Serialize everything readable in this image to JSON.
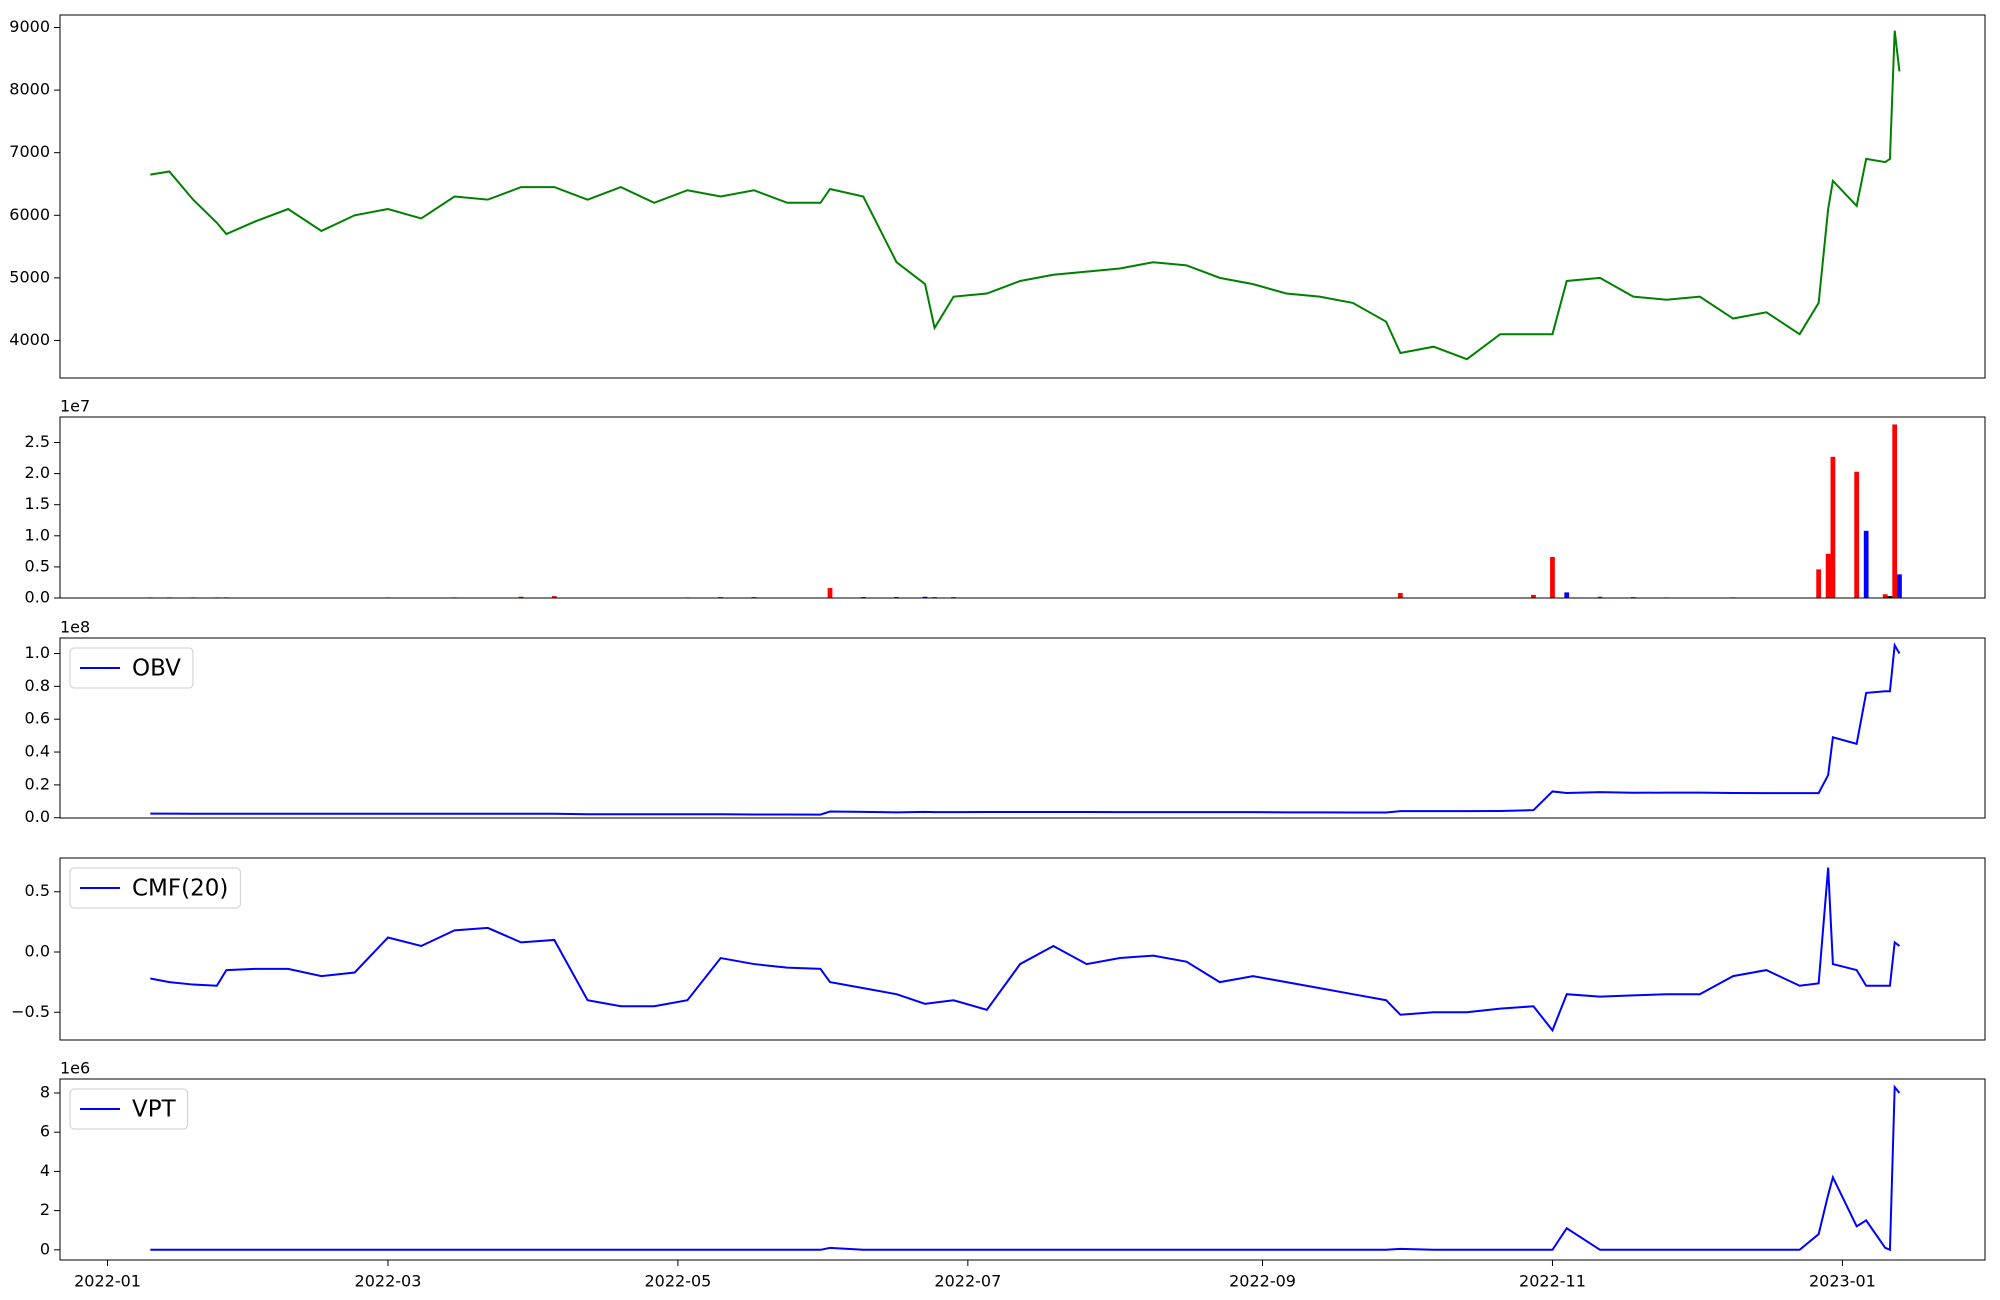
{
  "chart_data": [
    {
      "type": "line",
      "color": "green",
      "x": [
        "2022-01-10",
        "2022-01-14",
        "2022-01-19",
        "2022-01-24",
        "2022-01-26",
        "2022-02-01",
        "2022-02-08",
        "2022-02-15",
        "2022-02-22",
        "2022-03-01",
        "2022-03-08",
        "2022-03-15",
        "2022-03-22",
        "2022-03-29",
        "2022-04-05",
        "2022-04-12",
        "2022-04-19",
        "2022-04-26",
        "2022-05-03",
        "2022-05-10",
        "2022-05-17",
        "2022-05-24",
        "2022-05-31",
        "2022-06-02",
        "2022-06-09",
        "2022-06-16",
        "2022-06-22",
        "2022-06-24",
        "2022-06-28",
        "2022-07-05",
        "2022-07-12",
        "2022-07-19",
        "2022-07-26",
        "2022-08-02",
        "2022-08-09",
        "2022-08-16",
        "2022-08-23",
        "2022-08-30",
        "2022-09-06",
        "2022-09-13",
        "2022-09-20",
        "2022-09-27",
        "2022-09-30",
        "2022-10-07",
        "2022-10-14",
        "2022-10-21",
        "2022-10-28",
        "2022-11-01",
        "2022-11-04",
        "2022-11-11",
        "2022-11-18",
        "2022-11-25",
        "2022-12-02",
        "2022-12-09",
        "2022-12-16",
        "2022-12-23",
        "2022-12-27",
        "2022-12-29",
        "2022-12-30",
        "2023-01-04",
        "2023-01-06",
        "2023-01-10",
        "2023-01-11",
        "2023-01-12",
        "2023-01-13"
      ],
      "values": [
        6650,
        6700,
        6250,
        5880,
        5700,
        5900,
        6100,
        5750,
        6000,
        6100,
        5950,
        6300,
        6250,
        6450,
        6450,
        6250,
        6450,
        6200,
        6400,
        6300,
        6400,
        6200,
        6200,
        6420,
        6300,
        5250,
        4900,
        4200,
        4700,
        4750,
        4950,
        5050,
        5100,
        5150,
        5250,
        5200,
        5000,
        4900,
        4750,
        4700,
        4600,
        4300,
        3800,
        3900,
        3700,
        4100,
        4100,
        4100,
        4950,
        5000,
        4700,
        4650,
        4700,
        4350,
        4450,
        4100,
        4600,
        6100,
        6550,
        6150,
        6900,
        6850,
        6900,
        8950,
        8300
      ],
      "xlim": [
        "2021-12-22",
        "2023-01-31"
      ],
      "ylim": [
        3400,
        9200
      ],
      "yticks": [
        4000,
        5000,
        6000,
        7000,
        8000,
        9000
      ]
    },
    {
      "type": "bar",
      "offset_label": "1e7",
      "x": [
        "2022-01-10",
        "2022-01-14",
        "2022-01-19",
        "2022-01-24",
        "2022-01-26",
        "2022-02-01",
        "2022-02-08",
        "2022-02-15",
        "2022-02-22",
        "2022-03-01",
        "2022-03-08",
        "2022-03-15",
        "2022-03-22",
        "2022-03-29",
        "2022-04-05",
        "2022-04-12",
        "2022-04-19",
        "2022-04-26",
        "2022-05-03",
        "2022-05-10",
        "2022-05-17",
        "2022-05-24",
        "2022-05-31",
        "2022-06-02",
        "2022-06-09",
        "2022-06-16",
        "2022-06-22",
        "2022-06-24",
        "2022-06-28",
        "2022-07-05",
        "2022-07-12",
        "2022-07-19",
        "2022-07-26",
        "2022-08-02",
        "2022-08-09",
        "2022-08-16",
        "2022-08-23",
        "2022-08-30",
        "2022-09-06",
        "2022-09-13",
        "2022-09-20",
        "2022-09-27",
        "2022-09-30",
        "2022-10-07",
        "2022-10-14",
        "2022-10-21",
        "2022-10-28",
        "2022-11-01",
        "2022-11-04",
        "2022-11-11",
        "2022-11-18",
        "2022-11-25",
        "2022-12-02",
        "2022-12-09",
        "2022-12-16",
        "2022-12-23",
        "2022-12-27",
        "2022-12-29",
        "2022-12-30",
        "2023-01-04",
        "2023-01-06",
        "2023-01-10",
        "2023-01-11",
        "2023-01-12",
        "2023-01-13"
      ],
      "values": [
        100000,
        100000,
        100000,
        100000,
        100000,
        50000,
        50000,
        50000,
        50000,
        100000,
        50000,
        100000,
        50000,
        200000,
        300000,
        50000,
        50000,
        50000,
        100000,
        150000,
        150000,
        50000,
        50000,
        1600000,
        150000,
        150000,
        200000,
        150000,
        150000,
        50000,
        50000,
        50000,
        50000,
        50000,
        50000,
        50000,
        50000,
        50000,
        50000,
        50000,
        50000,
        50000,
        800000,
        50000,
        50000,
        50000,
        500000,
        6600000,
        900000,
        200000,
        150000,
        100000,
        50000,
        100000,
        50000,
        50000,
        4600000,
        7100000,
        22700000,
        20300000,
        10800000,
        600000,
        300000,
        27900000,
        3800000
      ],
      "colors": [
        "blue",
        "blue",
        "blue",
        "blue",
        "blue",
        "blue",
        "blue",
        "blue",
        "blue",
        "red",
        "blue",
        "red",
        "blue",
        "red",
        "red",
        "blue",
        "blue",
        "blue",
        "red",
        "red",
        "red",
        "blue",
        "blue",
        "red",
        "blue",
        "blue",
        "blue",
        "red",
        "red",
        "blue",
        "blue",
        "blue",
        "blue",
        "blue",
        "blue",
        "blue",
        "blue",
        "blue",
        "blue",
        "blue",
        "blue",
        "blue",
        "red",
        "blue",
        "blue",
        "blue",
        "red",
        "red",
        "blue",
        "red",
        "red",
        "red",
        "blue",
        "blue",
        "blue",
        "blue",
        "red",
        "red",
        "red",
        "red",
        "blue",
        "red",
        "black",
        "red",
        "blue"
      ],
      "xlim": [
        "2021-12-22",
        "2023-01-31"
      ],
      "ylim": [
        0,
        29100000
      ],
      "yticks": [
        {
          "value": 0,
          "label": "0.0"
        },
        {
          "value": 5000000,
          "label": "0.5"
        },
        {
          "value": 10000000,
          "label": "1.0"
        },
        {
          "value": 15000000,
          "label": "1.5"
        },
        {
          "value": 20000000,
          "label": "2.0"
        },
        {
          "value": 25000000,
          "label": "2.5"
        }
      ]
    },
    {
      "type": "line",
      "offset_label": "1e8",
      "legend": "upper left",
      "x": [
        "2022-01-10",
        "2022-01-14",
        "2022-01-19",
        "2022-01-24",
        "2022-01-26",
        "2022-02-01",
        "2022-02-08",
        "2022-02-15",
        "2022-02-22",
        "2022-03-01",
        "2022-03-08",
        "2022-03-15",
        "2022-03-22",
        "2022-03-29",
        "2022-04-05",
        "2022-04-12",
        "2022-04-19",
        "2022-04-26",
        "2022-05-03",
        "2022-05-10",
        "2022-05-17",
        "2022-05-24",
        "2022-05-31",
        "2022-06-02",
        "2022-06-09",
        "2022-06-16",
        "2022-06-22",
        "2022-06-24",
        "2022-06-28",
        "2022-07-05",
        "2022-07-12",
        "2022-07-19",
        "2022-07-26",
        "2022-08-02",
        "2022-08-09",
        "2022-08-16",
        "2022-08-23",
        "2022-08-30",
        "2022-09-06",
        "2022-09-13",
        "2022-09-20",
        "2022-09-27",
        "2022-09-30",
        "2022-10-07",
        "2022-10-14",
        "2022-10-21",
        "2022-10-28",
        "2022-11-01",
        "2022-11-04",
        "2022-11-11",
        "2022-11-18",
        "2022-11-25",
        "2022-12-02",
        "2022-12-09",
        "2022-12-16",
        "2022-12-23",
        "2022-12-27",
        "2022-12-29",
        "2022-12-30",
        "2023-01-04",
        "2023-01-06",
        "2023-01-10",
        "2023-01-11",
        "2023-01-12",
        "2023-01-13"
      ],
      "series": [
        {
          "name": "OBV",
          "color": "blue",
          "values": [
            2500000,
            2500000,
            2450000,
            2400000,
            2400000,
            2400000,
            2400000,
            2400000,
            2400000,
            2400000,
            2400000,
            2400000,
            2400000,
            2400000,
            2400000,
            2100000,
            2100000,
            2100000,
            2100000,
            2100000,
            2000000,
            2000000,
            1900000,
            3800000,
            3600000,
            3300000,
            3600000,
            3400000,
            3400000,
            3500000,
            3500000,
            3500000,
            3500000,
            3400000,
            3400000,
            3400000,
            3400000,
            3400000,
            3300000,
            3300000,
            3200000,
            3200000,
            4000000,
            4000000,
            4000000,
            4100000,
            4600000,
            16000000,
            15100000,
            15600000,
            15200000,
            15300000,
            15300000,
            15100000,
            15000000,
            15000000,
            15000000,
            26000000,
            49000000,
            45000000,
            76000000,
            77000000,
            77000000,
            105000000,
            100000000
          ]
        }
      ],
      "xlim": [
        "2021-12-22",
        "2023-01-31"
      ],
      "ylim": [
        -160000,
        109450000
      ],
      "yticks": [
        {
          "value": 0,
          "label": "0.0"
        },
        {
          "value": 20000000,
          "label": "0.2"
        },
        {
          "value": 40000000,
          "label": "0.4"
        },
        {
          "value": 60000000,
          "label": "0.6"
        },
        {
          "value": 80000000,
          "label": "0.8"
        },
        {
          "value": 100000000,
          "label": "1.0"
        }
      ]
    },
    {
      "type": "line",
      "legend": "upper left",
      "x": [
        "2022-01-10",
        "2022-01-14",
        "2022-01-19",
        "2022-01-24",
        "2022-01-26",
        "2022-02-01",
        "2022-02-08",
        "2022-02-15",
        "2022-02-22",
        "2022-03-01",
        "2022-03-08",
        "2022-03-15",
        "2022-03-22",
        "2022-03-29",
        "2022-04-05",
        "2022-04-12",
        "2022-04-19",
        "2022-04-26",
        "2022-05-03",
        "2022-05-10",
        "2022-05-17",
        "2022-05-24",
        "2022-05-31",
        "2022-06-02",
        "2022-06-09",
        "2022-06-16",
        "2022-06-22",
        "2022-06-24",
        "2022-06-28",
        "2022-07-05",
        "2022-07-12",
        "2022-07-19",
        "2022-07-26",
        "2022-08-02",
        "2022-08-09",
        "2022-08-16",
        "2022-08-23",
        "2022-08-30",
        "2022-09-06",
        "2022-09-13",
        "2022-09-20",
        "2022-09-27",
        "2022-09-30",
        "2022-10-07",
        "2022-10-14",
        "2022-10-21",
        "2022-10-28",
        "2022-11-01",
        "2022-11-04",
        "2022-11-11",
        "2022-11-18",
        "2022-11-25",
        "2022-12-02",
        "2022-12-09",
        "2022-12-16",
        "2022-12-23",
        "2022-12-27",
        "2022-12-29",
        "2022-12-30",
        "2023-01-04",
        "2023-01-06",
        "2023-01-10",
        "2023-01-11",
        "2023-01-12",
        "2023-01-13"
      ],
      "series": [
        {
          "name": "CMF(20)",
          "color": "blue",
          "values": [
            -0.22,
            -0.25,
            -0.27,
            -0.28,
            -0.15,
            -0.14,
            -0.14,
            -0.2,
            -0.17,
            0.12,
            0.05,
            0.18,
            0.2,
            0.08,
            0.1,
            -0.4,
            -0.45,
            -0.45,
            -0.4,
            -0.05,
            -0.1,
            -0.13,
            -0.14,
            -0.25,
            -0.3,
            -0.35,
            -0.43,
            -0.42,
            -0.4,
            -0.48,
            -0.1,
            0.05,
            -0.1,
            -0.05,
            -0.03,
            -0.08,
            -0.25,
            -0.2,
            -0.25,
            -0.3,
            -0.35,
            -0.4,
            -0.52,
            -0.5,
            -0.5,
            -0.47,
            -0.45,
            -0.65,
            -0.35,
            -0.37,
            -0.36,
            -0.35,
            -0.35,
            -0.2,
            -0.15,
            -0.28,
            -0.26,
            0.7,
            -0.1,
            -0.15,
            -0.28,
            -0.28,
            -0.28,
            0.08,
            0.05
          ]
        }
      ],
      "xlim": [
        "2021-12-22",
        "2023-01-31"
      ],
      "ylim": [
        -0.73,
        0.78
      ],
      "yticks": [
        {
          "value": -0.5,
          "label": "−0.5"
        },
        {
          "value": 0,
          "label": "0.0"
        },
        0.5
      ]
    },
    {
      "type": "line",
      "offset_label": "1e6",
      "legend": "upper left",
      "x": [
        "2022-01-10",
        "2022-01-14",
        "2022-01-19",
        "2022-01-24",
        "2022-01-26",
        "2022-02-01",
        "2022-02-08",
        "2022-02-15",
        "2022-02-22",
        "2022-03-01",
        "2022-03-08",
        "2022-03-15",
        "2022-03-22",
        "2022-03-29",
        "2022-04-05",
        "2022-04-12",
        "2022-04-19",
        "2022-04-26",
        "2022-05-03",
        "2022-05-10",
        "2022-05-17",
        "2022-05-24",
        "2022-05-31",
        "2022-06-02",
        "2022-06-09",
        "2022-06-16",
        "2022-06-22",
        "2022-06-24",
        "2022-06-28",
        "2022-07-05",
        "2022-07-12",
        "2022-07-19",
        "2022-07-26",
        "2022-08-02",
        "2022-08-09",
        "2022-08-16",
        "2022-08-23",
        "2022-08-30",
        "2022-09-06",
        "2022-09-13",
        "2022-09-20",
        "2022-09-27",
        "2022-09-30",
        "2022-10-07",
        "2022-10-14",
        "2022-10-21",
        "2022-10-28",
        "2022-11-01",
        "2022-11-04",
        "2022-11-11",
        "2022-11-18",
        "2022-11-25",
        "2022-12-02",
        "2022-12-09",
        "2022-12-16",
        "2022-12-23",
        "2022-12-27",
        "2022-12-29",
        "2022-12-30",
        "2023-01-04",
        "2023-01-06",
        "2023-01-10",
        "2023-01-11",
        "2023-01-12",
        "2023-01-13"
      ],
      "series": [
        {
          "name": "VPT",
          "color": "blue",
          "values": [
            0,
            0,
            0,
            0,
            0,
            0,
            0,
            0,
            0,
            0,
            0,
            0,
            0,
            0,
            0,
            0,
            0,
            0,
            0,
            0,
            0,
            0,
            0,
            100000,
            0,
            0,
            0,
            0,
            0,
            0,
            0,
            0,
            0,
            0,
            0,
            0,
            0,
            0,
            0,
            0,
            0,
            0,
            50000,
            0,
            0,
            0,
            0,
            0,
            1100000,
            0,
            0,
            0,
            0,
            0,
            0,
            0,
            800000,
            2800000,
            3700000,
            1200000,
            1500000,
            100000,
            0,
            8300000,
            8000000
          ]
        }
      ],
      "xlim": [
        "2021-12-22",
        "2023-01-31"
      ],
      "ylim": [
        -520000,
        8715000
      ],
      "yticks": [
        {
          "value": 0,
          "label": "0"
        },
        {
          "value": 2000000,
          "label": "2"
        },
        {
          "value": 4000000,
          "label": "4"
        },
        {
          "value": 6000000,
          "label": "6"
        },
        {
          "value": 8000000,
          "label": "8"
        }
      ],
      "xticks": [
        {
          "value": "2022-01-01",
          "label": "2022-01"
        },
        {
          "value": "2022-03-01",
          "label": "2022-03"
        },
        {
          "value": "2022-05-01",
          "label": "2022-05"
        },
        {
          "value": "2022-07-01",
          "label": "2022-07"
        },
        {
          "value": "2022-09-01",
          "label": "2022-09"
        },
        {
          "value": "2022-11-01",
          "label": "2022-11"
        },
        {
          "value": "2023-01-01",
          "label": "2023-01"
        }
      ]
    }
  ]
}
